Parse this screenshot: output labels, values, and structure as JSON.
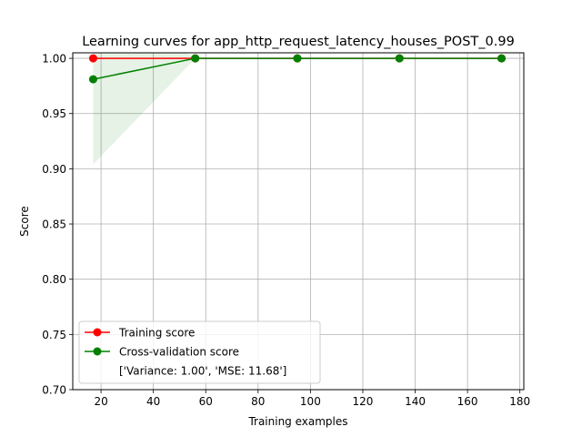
{
  "chart_data": {
    "type": "line",
    "title": "Learning curves for app_http_request_latency_houses_POST_0.99",
    "xlabel": "Training examples",
    "ylabel": "Score",
    "xlim": [
      9.2,
      181.5
    ],
    "ylim": [
      0.7,
      1.005
    ],
    "xticks": [
      20,
      40,
      60,
      80,
      100,
      120,
      140,
      160,
      180
    ],
    "xtick_labels": [
      "20",
      "40",
      "60",
      "80",
      "100",
      "120",
      "140",
      "160",
      "180"
    ],
    "yticks": [
      0.7,
      0.75,
      0.8,
      0.85,
      0.9,
      0.95,
      1.0
    ],
    "ytick_labels": [
      "0.70",
      "0.75",
      "0.80",
      "0.85",
      "0.90",
      "0.95",
      "1.00"
    ],
    "grid": true,
    "legend_position": "lower-left",
    "x": [
      17,
      56,
      95,
      134,
      173
    ],
    "series": [
      {
        "name": "Training score",
        "color": "#ff0000",
        "values": [
          1.0,
          1.0,
          1.0,
          1.0,
          1.0
        ],
        "band_lower": [
          1.0,
          1.0,
          1.0,
          1.0,
          1.0
        ],
        "band_upper": [
          1.0,
          1.0,
          1.0,
          1.0,
          1.0
        ]
      },
      {
        "name": "Cross-validation score",
        "color": "#008000",
        "values": [
          0.981,
          1.0,
          1.0,
          1.0,
          1.0
        ],
        "band_lower": [
          0.904,
          1.0,
          1.0,
          1.0,
          1.0
        ],
        "band_upper": [
          1.058,
          1.0,
          1.0,
          1.0,
          1.0
        ]
      }
    ],
    "legend_note": "['Variance: 1.00', 'MSE: 11.68']"
  }
}
